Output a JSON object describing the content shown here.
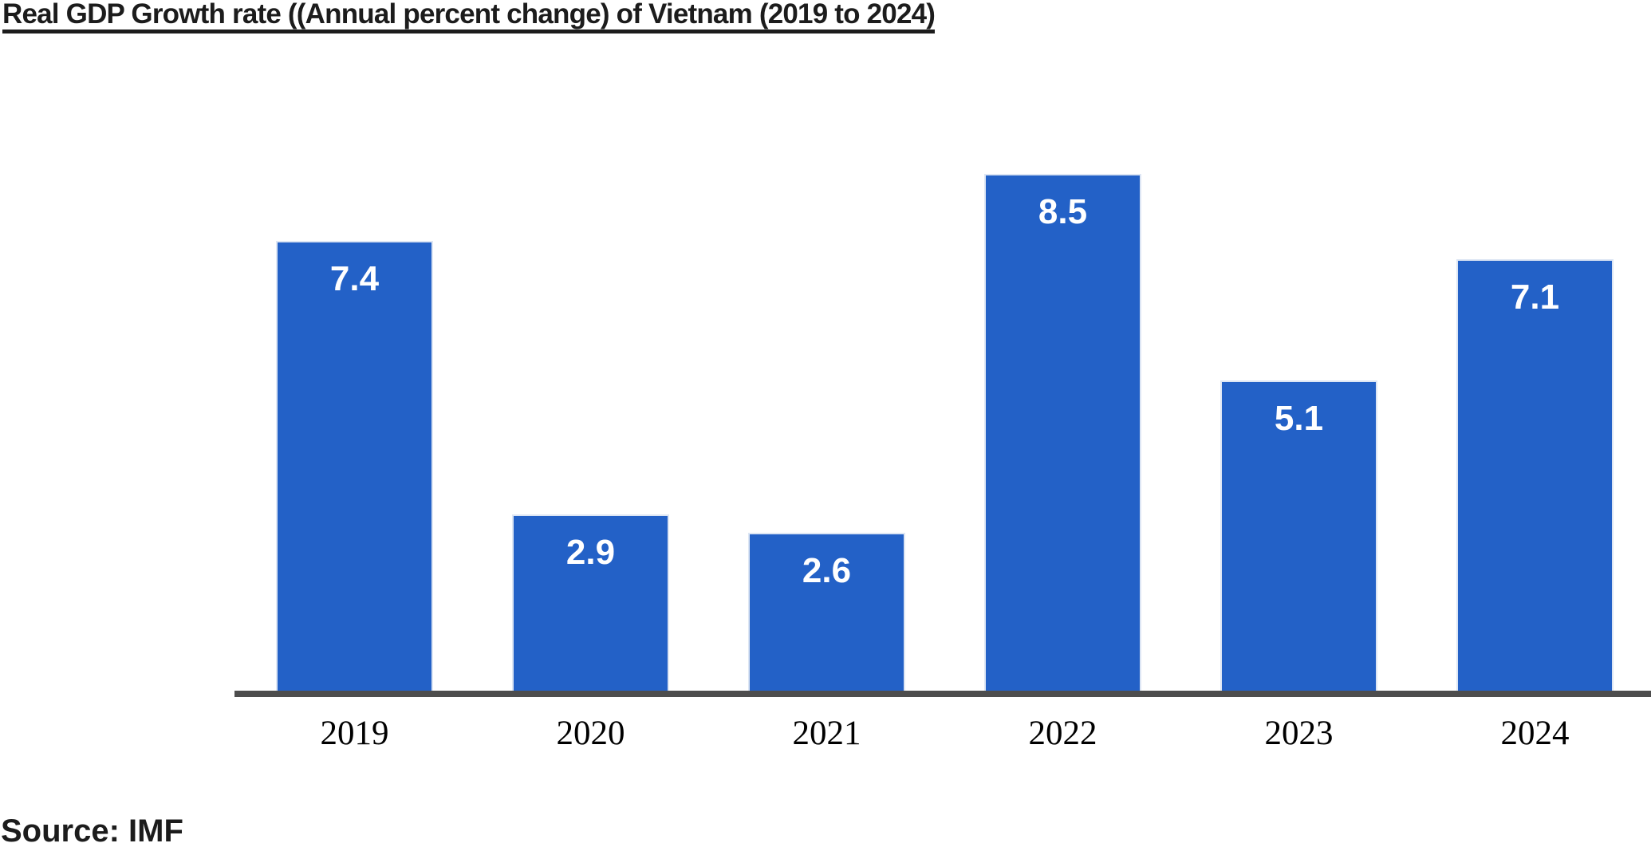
{
  "header": {
    "title": "Real GDP Growth rate ((Annual percent change) of Vietnam (2019 to 2024)"
  },
  "footer": {
    "source_note": "Source: IMF"
  },
  "chart_data": {
    "type": "bar",
    "title": "Real GDP Growth rate ((Annual percent change) of Vietnam (2019 to 2024)",
    "categories": [
      "2019",
      "2020",
      "2021",
      "2022",
      "2023",
      "2024"
    ],
    "values": [
      7.4,
      2.9,
      2.6,
      8.5,
      5.1,
      7.1
    ],
    "value_labels": [
      "7.4",
      "2.9",
      "2.6",
      "8.5",
      "5.1",
      "7.1"
    ],
    "xlabel": "",
    "ylabel": "",
    "ylim": [
      0,
      9
    ],
    "grid": false,
    "legend": "none",
    "y_axis_visible": false,
    "data_label_position": "inside-top",
    "colors": {
      "bar_fill": "#2361C7",
      "bar_border": "#DDE6F4",
      "data_label": "#FFFFFF",
      "axis_line": "#4D4D4D",
      "tick_label": "#000000",
      "title_text": "#1C1C1C"
    },
    "source_note": "Source: IMF"
  }
}
